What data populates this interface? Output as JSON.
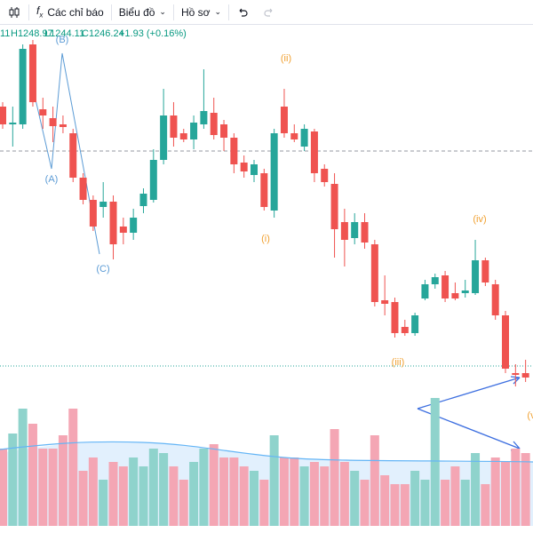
{
  "toolbar": {
    "indicators": "Các chỉ báo",
    "chart": "Biểu đồ",
    "profile": "Hồ sơ"
  },
  "legend": {
    "open": "11",
    "high": "H1248.97",
    "low": "L1244.11",
    "close": "C1246.24",
    "change": "+1.93 (+0.16%)"
  },
  "chart_data": {
    "type": "candlestick",
    "categories": [
      null,
      null,
      null,
      null,
      null,
      null,
      null,
      null,
      null,
      null,
      null,
      null,
      null,
      null,
      null,
      null,
      null,
      null,
      null,
      null,
      null,
      null,
      null,
      null,
      null,
      null,
      null,
      null,
      null,
      null,
      null,
      null,
      null,
      null,
      null,
      null,
      null,
      null,
      null,
      null,
      null,
      null,
      null,
      null,
      null,
      null,
      null,
      null,
      null,
      null,
      null,
      null,
      null
    ],
    "open": [
      1304,
      1300,
      1300,
      1318,
      1303.4,
      1301.4,
      1300,
      1298,
      1288,
      1283,
      1281.4,
      1282.6,
      1277,
      1275.6,
      1281.6,
      1283,
      1292,
      1302,
      1298,
      1296.6,
      1300,
      1302.6,
      1300,
      1297,
      1291.4,
      1288.6,
      1289,
      1280.6,
      1304,
      1298,
      1295,
      1298.4,
      1290,
      1286.6,
      1278,
      1274.4,
      1278,
      1273,
      1260.4,
      1260,
      1254.4,
      1253,
      1260.8,
      1264,
      1266,
      1262,
      1262,
      1262,
      1269.4,
      1264,
      1257,
      1244,
      1244
    ],
    "high": [
      1305,
      1304,
      1318,
      1319,
      1306,
      1304,
      1302,
      1299,
      1289,
      1284,
      1287,
      1284,
      1279,
      1281,
      1285.6,
      1294.4,
      1308,
      1305,
      1299,
      1302,
      1312.4,
      1306,
      1301,
      1298,
      1293,
      1292,
      1290,
      1299,
      1308,
      1300,
      1300,
      1299,
      1291,
      1289,
      1281,
      1280,
      1280,
      1274,
      1266,
      1261,
      1256,
      1257.6,
      1265,
      1266.4,
      1267,
      1264.4,
      1265,
      1274,
      1270,
      1265,
      1258,
      1246,
      1247
    ],
    "low": [
      1299,
      1295,
      1299,
      1304,
      1299,
      1296,
      1298,
      1287,
      1282,
      1276,
      1279,
      1269.6,
      1273,
      1274,
      1280,
      1282.4,
      1291,
      1295,
      1296,
      1294.4,
      1299,
      1296.6,
      1294,
      1289,
      1288,
      1287,
      1280.6,
      1279,
      1297,
      1296,
      1294,
      1287,
      1286,
      1270,
      1268,
      1273,
      1272,
      1259,
      1257,
      1252,
      1252.4,
      1252.4,
      1260.4,
      1263,
      1260,
      1260.4,
      1261,
      1261.6,
      1263.6,
      1256,
      1244,
      1241,
      1242
    ],
    "close": [
      1300,
      1300.4,
      1317,
      1305,
      1302,
      1299.6,
      1299.4,
      1288,
      1283,
      1277,
      1282.6,
      1273,
      1275.6,
      1279,
      1284.4,
      1292,
      1302,
      1297,
      1296.6,
      1300.4,
      1303,
      1297.6,
      1297,
      1291,
      1289.4,
      1291,
      1281.4,
      1298,
      1298,
      1296.6,
      1299,
      1289,
      1287,
      1276.4,
      1274,
      1278,
      1273.4,
      1260,
      1259.6,
      1253,
      1253,
      1257,
      1264,
      1265.6,
      1260.8,
      1260.8,
      1262.6,
      1269.4,
      1264.4,
      1257,
      1245,
      1243.6,
      1243
    ],
    "ylim": [
      1240,
      1328
    ],
    "up_color": "#26a69a",
    "down_color": "#ef5350",
    "reference_lines": [
      1294,
      1245.6
    ],
    "volume": {
      "values": [
        87,
        104,
        132,
        115,
        87,
        87,
        102,
        132,
        62,
        77,
        52,
        72,
        67,
        77,
        67,
        87,
        82,
        67,
        52,
        72,
        87,
        92,
        77,
        77,
        67,
        62,
        52,
        102,
        77,
        77,
        67,
        72,
        67,
        109,
        72,
        62,
        52,
        102,
        57,
        47,
        47,
        62,
        52,
        144,
        52,
        67,
        52,
        82,
        47,
        77,
        72,
        87,
        82
      ],
      "ylim": [
        0,
        150
      ],
      "up_color": "#8fd3cc",
      "down_color": "#f4a6b4"
    },
    "annotations": [
      "(B)",
      "(A)",
      "(C)",
      "(ii)",
      "(i)",
      "(iv)",
      "(iii)",
      "(v"
    ]
  }
}
